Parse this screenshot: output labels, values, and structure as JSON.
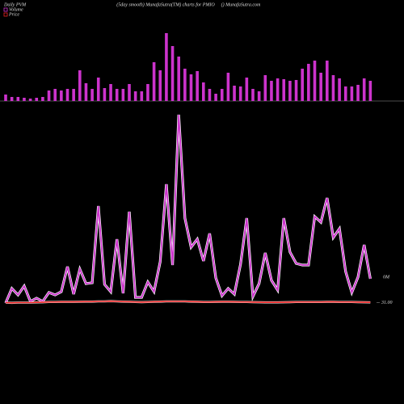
{
  "chart_data": {
    "type": "combo",
    "title": "Daily PVM",
    "subtitle": "(5day smooth) MunafaSutra(TM) charts for PMIO",
    "source": "() MunafaSutra.com",
    "series": [
      {
        "name": "Volume",
        "color": "#cc33cc",
        "values": [
          8,
          5,
          5,
          4,
          3,
          4,
          5,
          13,
          15,
          13,
          15,
          15,
          38,
          22,
          15,
          29,
          16,
          21,
          15,
          15,
          21,
          12,
          12,
          21,
          48,
          38,
          84,
          68,
          55,
          40,
          33,
          37,
          23,
          15,
          9,
          15,
          35,
          19,
          18,
          29,
          15,
          12,
          32,
          25,
          28,
          27,
          25,
          26,
          40,
          46,
          50,
          35,
          50,
          32,
          28,
          18,
          18,
          20,
          28,
          25
        ],
        "line_values": [
          0,
          18,
          10,
          21,
          2,
          6,
          2,
          13,
          10,
          14,
          45,
          11,
          42,
          24,
          25,
          120,
          23,
          14,
          79,
          12,
          113,
          7,
          7,
          26,
          14,
          51,
          147,
          47,
          233,
          105,
          69,
          79,
          52,
          86,
          31,
          9,
          18,
          11,
          48,
          105,
          8,
          24,
          62,
          28,
          16,
          105,
          63,
          49,
          47,
          47,
          107,
          100,
          130,
          81,
          92,
          39,
          13,
          32,
          72,
          30
        ]
      },
      {
        "name": "Price",
        "color": "#ee2222",
        "values": [
          31,
          30.98,
          31,
          31,
          31,
          31.02,
          31.03,
          31.05,
          31.05,
          31.06,
          31.06,
          31.06,
          31.07,
          31.08,
          31.08,
          31.1,
          31.1,
          31.12,
          31.1,
          31.08,
          31.07,
          31.05,
          31.04,
          31.05,
          31.07,
          31.08,
          31.1,
          31.1,
          31.1,
          31.1,
          31.08,
          31.07,
          31.05,
          31.05,
          31.06,
          31.07,
          31.07,
          31.06,
          31.05,
          31.05,
          31.04,
          31.03,
          31.02,
          31.02,
          31.02,
          31.03,
          31.04,
          31.05,
          31.05,
          31.05,
          31.05,
          31.05,
          31.06,
          31.06,
          31.05,
          31.05,
          31.05,
          31.04,
          31.03,
          31.02
        ]
      }
    ],
    "volume_label": "0M",
    "price_label": {
      "value": 31,
      "label": "31.00"
    }
  }
}
